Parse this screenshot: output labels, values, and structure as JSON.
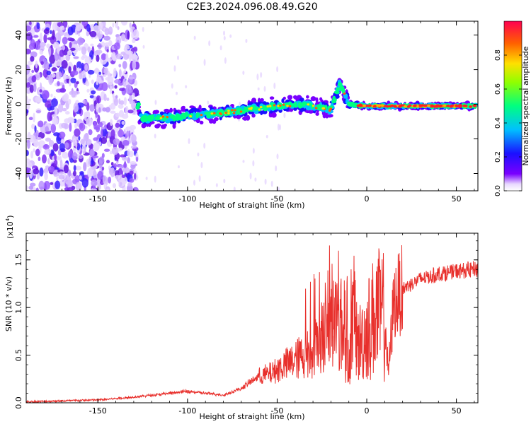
{
  "title": "C2E3.2024.096.08.49.G20",
  "colorbar": {
    "label": "Normalized spectral amplitude",
    "ticks": [
      "0.0",
      "0.2",
      "0.4",
      "0.6",
      "0.8"
    ],
    "tick_values": [
      0.0,
      0.2,
      0.4,
      0.6,
      0.8
    ],
    "range": [
      0,
      1
    ]
  },
  "chart_data": [
    {
      "type": "heatmap",
      "title": "",
      "xlabel": "Height of straight line (km)",
      "ylabel": "Frequency (Hz)",
      "xlim": [
        -190,
        62
      ],
      "ylim": [
        -50,
        48
      ],
      "x_ticks": [
        -150,
        -100,
        -50,
        0,
        50
      ],
      "x_tick_labels": [
        "-150",
        "-100",
        "-50",
        "0",
        "50"
      ],
      "y_ticks": [
        -40,
        -20,
        0,
        20,
        40
      ],
      "y_tick_labels": [
        "-40",
        "-20",
        "0",
        "20",
        "40"
      ],
      "colormap": "rainbow",
      "ridge": [
        {
          "x": -127,
          "y": -8
        },
        {
          "x": -110,
          "y": -8
        },
        {
          "x": -95,
          "y": -6
        },
        {
          "x": -80,
          "y": -5
        },
        {
          "x": -65,
          "y": -3
        },
        {
          "x": -50,
          "y": -1
        },
        {
          "x": -35,
          "y": 0
        },
        {
          "x": -20,
          "y": -3
        },
        {
          "x": -15,
          "y": 12
        },
        {
          "x": -10,
          "y": 0
        },
        {
          "x": 0,
          "y": -1
        },
        {
          "x": 20,
          "y": -1
        },
        {
          "x": 60,
          "y": -1
        }
      ]
    },
    {
      "type": "line",
      "title": "",
      "xlabel": "Height of straight line (km)",
      "ylabel": "SNR (10 * v/v)",
      "y_multiplier": "(x10",
      "y_multiplier_exp": "4",
      "y_multiplier_close": ")",
      "xlim": [
        -190,
        62
      ],
      "ylim": [
        0,
        1.78
      ],
      "x_ticks": [
        -150,
        -100,
        -50,
        0,
        50
      ],
      "x_tick_labels": [
        "-150",
        "-100",
        "-50",
        "0",
        "50"
      ],
      "y_ticks": [
        0,
        0.5,
        1.0,
        1.5
      ],
      "y_tick_labels": [
        "0.0",
        "0.5",
        "1.0",
        "1.5"
      ],
      "series": [
        {
          "color": "#e8302c",
          "x": [
            -190,
            -170,
            -150,
            -130,
            -120,
            -110,
            -100,
            -90,
            -80,
            -70,
            -65,
            -60,
            -55,
            -50,
            -45,
            -40,
            -35,
            -30,
            -25,
            -20,
            -15,
            -10,
            -7,
            -5,
            0,
            5,
            10,
            12,
            15,
            20,
            25,
            30,
            40,
            50,
            60
          ],
          "y": [
            0.01,
            0.02,
            0.03,
            0.06,
            0.08,
            0.1,
            0.12,
            0.1,
            0.08,
            0.15,
            0.22,
            0.28,
            0.3,
            0.35,
            0.4,
            0.45,
            0.5,
            0.55,
            0.7,
            0.85,
            0.9,
            0.4,
            0.95,
            0.6,
            0.75,
            0.95,
            0.9,
            0.3,
            1.05,
            1.2,
            1.25,
            1.3,
            1.35,
            1.38,
            1.4
          ]
        }
      ]
    }
  ]
}
